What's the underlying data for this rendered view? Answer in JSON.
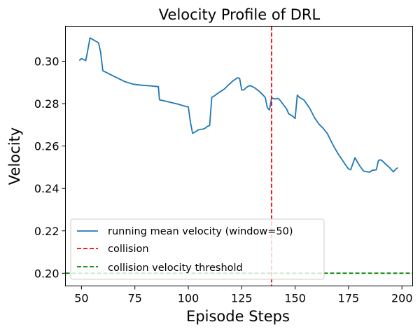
{
  "chart_data": {
    "type": "line",
    "title": "Velocity Profile of DRL",
    "xlabel": "Episode Steps",
    "ylabel": "Velocity",
    "xlim": [
      42.5,
      205
    ],
    "ylim": [
      0.194,
      0.3165
    ],
    "xticks": [
      50,
      75,
      100,
      125,
      150,
      175,
      200
    ],
    "yticks": [
      0.2,
      0.22,
      0.24,
      0.26,
      0.28,
      0.3
    ],
    "ytick_labels": [
      "0.20",
      "0.22",
      "0.24",
      "0.26",
      "0.28",
      "0.30"
    ],
    "grid": false,
    "legend_position": "lower-left",
    "series": [
      {
        "name": "running mean velocity (window=50)",
        "color": "#1f77b4",
        "style": "solid",
        "x": [
          49,
          50,
          52,
          53,
          54,
          58,
          59,
          60,
          64,
          68,
          70,
          74,
          78,
          82,
          86,
          86.5,
          90,
          95,
          99,
          100,
          101,
          102,
          103,
          105,
          107,
          108,
          109,
          110,
          111,
          112,
          114,
          117,
          119,
          121,
          123,
          124,
          125,
          126,
          127,
          128,
          129,
          131,
          133,
          135,
          136,
          137,
          138,
          139,
          140,
          141,
          142,
          143,
          146,
          147,
          149,
          150,
          151,
          152,
          154,
          155,
          157,
          159,
          161,
          163,
          165,
          166,
          168,
          170,
          172,
          174,
          175,
          176,
          178,
          180,
          182,
          183,
          184,
          185,
          186,
          188,
          189,
          190,
          191,
          192,
          194,
          196,
          197,
          198
        ],
        "y": [
          0.3003,
          0.3013,
          0.3003,
          0.3055,
          0.311,
          0.3087,
          0.304,
          0.2955,
          0.2935,
          0.2915,
          0.2905,
          0.2892,
          0.2887,
          0.2884,
          0.288,
          0.2818,
          0.281,
          0.2798,
          0.2786,
          0.2785,
          0.2712,
          0.266,
          0.2665,
          0.2678,
          0.268,
          0.2685,
          0.2693,
          0.2697,
          0.283,
          0.2835,
          0.285,
          0.287,
          0.289,
          0.2908,
          0.2922,
          0.292,
          0.2864,
          0.2865,
          0.2875,
          0.2882,
          0.2885,
          0.2875,
          0.286,
          0.284,
          0.283,
          0.278,
          0.277,
          0.2828,
          0.2823,
          0.2822,
          0.2825,
          0.2815,
          0.2775,
          0.2752,
          0.274,
          0.273,
          0.284,
          0.283,
          0.2818,
          0.2805,
          0.2775,
          0.2735,
          0.2705,
          0.2685,
          0.266,
          0.264,
          0.26,
          0.2565,
          0.2535,
          0.2505,
          0.2492,
          0.2488,
          0.2545,
          0.251,
          0.2482,
          0.248,
          0.2478,
          0.2477,
          0.2485,
          0.2488,
          0.2532,
          0.2535,
          0.2528,
          0.2518,
          0.25,
          0.2478,
          0.249,
          0.2498
        ]
      },
      {
        "name": "collision",
        "color": "#ff0000",
        "style": "dashed",
        "orientation": "vertical",
        "x": 139
      },
      {
        "name": "collision velocity threshold",
        "color": "#008000",
        "style": "dashed",
        "orientation": "horizontal",
        "y": 0.2
      }
    ]
  }
}
